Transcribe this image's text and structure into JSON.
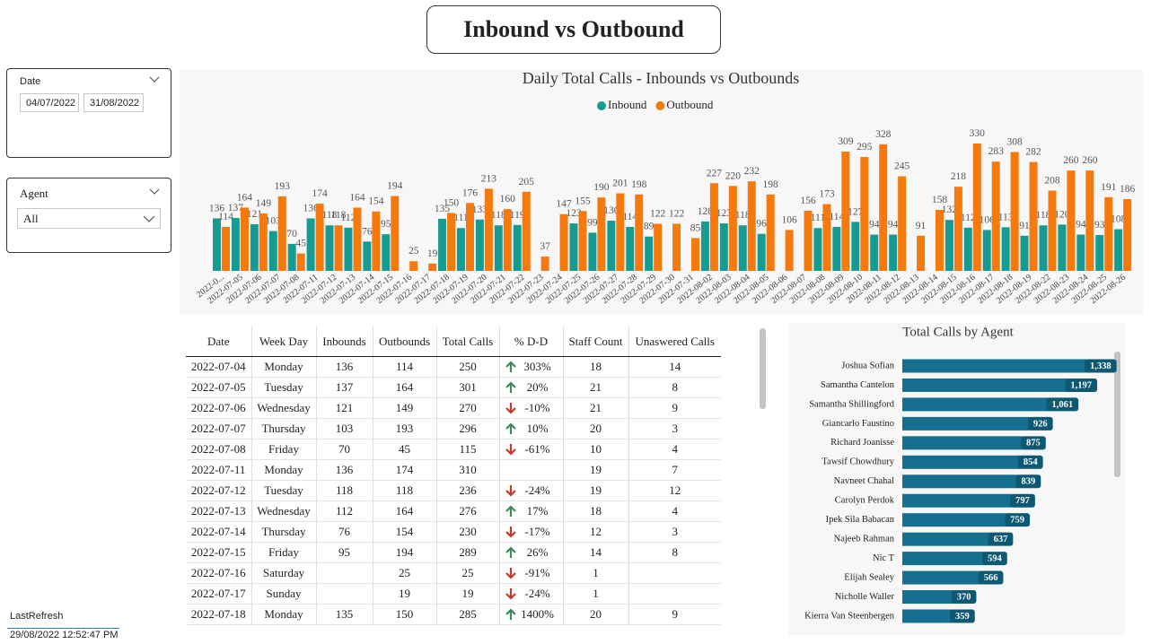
{
  "header": {
    "title": "Inbound vs Outbound"
  },
  "filters": {
    "date": {
      "label": "Date",
      "start": "04/07/2022",
      "end": "31/08/2022"
    },
    "agent": {
      "label": "Agent",
      "value": "All"
    }
  },
  "refresh": {
    "label": "LastRefresh",
    "value": "29/08/2022 12:52:47 PM"
  },
  "chart_data": [
    {
      "type": "bar",
      "title": "Daily Total Calls - Inbounds vs Outbounds",
      "legend": "top",
      "categories": [
        "2022-0...",
        "2022-07-05",
        "2022-07-06",
        "2022-07-07",
        "2022-07-08",
        "2022-07-11",
        "2022-07-12",
        "2022-07-13",
        "2022-07-14",
        "2022-07-15",
        "2022-07-16",
        "2022-07-17",
        "2022-07-18",
        "2022-07-19",
        "2022-07-20",
        "2022-07-21",
        "2022-07-22",
        "2022-07-23",
        "2022-07-24",
        "2022-07-25",
        "2022-07-26",
        "2022-07-27",
        "2022-07-28",
        "2022-07-29",
        "2022-07-30",
        "2022-07-31",
        "2022-08-02",
        "2022-08-03",
        "2022-08-04",
        "2022-08-05",
        "2022-08-06",
        "2022-08-07",
        "2022-08-08",
        "2022-08-09",
        "2022-08-10",
        "2022-08-11",
        "2022-08-12",
        "2022-08-13",
        "2022-08-14",
        "2022-08-15",
        "2022-08-16",
        "2022-08-17",
        "2022-08-18",
        "2022-08-19",
        "2022-08-22",
        "2022-08-23",
        "2022-08-24",
        "2022-08-25",
        "2022-08-26"
      ],
      "series": [
        {
          "name": "Inbound",
          "color": "#169b93",
          "values": [
            136,
            137,
            121,
            103,
            70,
            136,
            118,
            112,
            76,
            95,
            null,
            null,
            135,
            111,
            133,
            118,
            119,
            null,
            null,
            123,
            99,
            130,
            114,
            89,
            null,
            null,
            128,
            123,
            118,
            96,
            null,
            null,
            111,
            114,
            127,
            94,
            94,
            null,
            null,
            132,
            112,
            106,
            113,
            91,
            118,
            120,
            94,
            93,
            108
          ]
        },
        {
          "name": "Outbound",
          "color": "#f5790c",
          "values": [
            114,
            164,
            149,
            193,
            45,
            174,
            118,
            164,
            154,
            194,
            25,
            19,
            150,
            176,
            213,
            160,
            205,
            37,
            147,
            155,
            190,
            201,
            198,
            122,
            122,
            85,
            227,
            220,
            232,
            198,
            106,
            156,
            173,
            309,
            295,
            328,
            245,
            91,
            158,
            218,
            330,
            283,
            308,
            282,
            208,
            260,
            260,
            191,
            186
          ]
        }
      ]
    },
    {
      "type": "barh",
      "title": "Total Calls by Agent",
      "color": "#15708f",
      "label_color": "#0d5872",
      "categories": [
        "Joshua Sofian",
        "Samantha Cantelon",
        "Samantha Shillingford",
        "Giancarlo Faustino",
        "Richard Joanisse",
        "Tawsif Chowdhury",
        "Navneet Chahal",
        "Carolyn Perdok",
        "Ipek Sila Babacan",
        "Najeeb Rahman",
        "Nic T",
        "Elijah Sealey",
        "Nicholle Waller",
        "Kierra Van Steenbergen"
      ],
      "values": [
        1338,
        1197,
        1061,
        926,
        875,
        854,
        839,
        797,
        759,
        637,
        594,
        566,
        370,
        359
      ],
      "value_labels": [
        "1,338",
        "1,197",
        "1,061",
        "926",
        "875",
        "854",
        "839",
        "797",
        "759",
        "637",
        "594",
        "566",
        "370",
        "359"
      ]
    }
  ],
  "table": {
    "columns": [
      "Date",
      "Week Day",
      "Inbounds",
      "Outbounds",
      "Total Calls",
      "% D-D",
      "Staff Count",
      "Unaswered Calls"
    ],
    "rows": [
      [
        "2022-07-04",
        "Monday",
        "136",
        "114",
        "250",
        "303%",
        "18",
        "14"
      ],
      [
        "2022-07-05",
        "Tuesday",
        "137",
        "164",
        "301",
        "20%",
        "21",
        "8"
      ],
      [
        "2022-07-06",
        "Wednesday",
        "121",
        "149",
        "270",
        "-10%",
        "21",
        "9"
      ],
      [
        "2022-07-07",
        "Thursday",
        "103",
        "193",
        "296",
        "10%",
        "20",
        "3"
      ],
      [
        "2022-07-08",
        "Friday",
        "70",
        "45",
        "115",
        "-61%",
        "10",
        "4"
      ],
      [
        "2022-07-11",
        "Monday",
        "136",
        "174",
        "310",
        null,
        "19",
        "7"
      ],
      [
        "2022-07-12",
        "Tuesday",
        "118",
        "118",
        "236",
        "-24%",
        "19",
        "12"
      ],
      [
        "2022-07-13",
        "Wednesday",
        "112",
        "164",
        "276",
        "17%",
        "18",
        "4"
      ],
      [
        "2022-07-14",
        "Thursday",
        "76",
        "154",
        "230",
        "-17%",
        "12",
        "3"
      ],
      [
        "2022-07-15",
        "Friday",
        "95",
        "194",
        "289",
        "26%",
        "14",
        "8"
      ],
      [
        "2022-07-16",
        "Saturday",
        null,
        "25",
        "25",
        "-91%",
        "1",
        null
      ],
      [
        "2022-07-17",
        "Sunday",
        null,
        "19",
        "19",
        "-24%",
        "1",
        null
      ],
      [
        "2022-07-18",
        "Monday",
        "135",
        "150",
        "285",
        "1400%",
        "20",
        "9"
      ]
    ]
  }
}
